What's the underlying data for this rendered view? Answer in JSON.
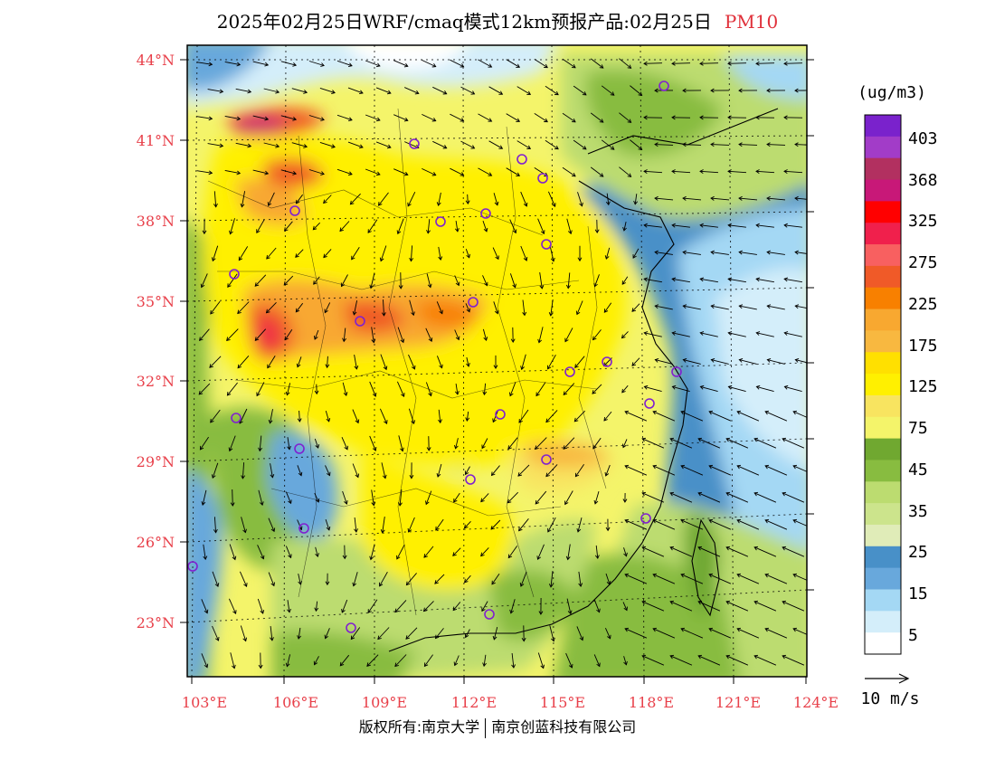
{
  "title": {
    "main": "2025年02月25日WRF/cmaq模式12km预报产品:02月25日",
    "pollutant": "PM10"
  },
  "map": {
    "lat_labels": [
      "44°N",
      "41°N",
      "38°N",
      "35°N",
      "32°N",
      "29°N",
      "26°N",
      "23°N"
    ],
    "lon_labels": [
      "103°E",
      "106°E",
      "109°E",
      "112°E",
      "115°E",
      "118°E",
      "121°E",
      "124°E"
    ]
  },
  "colorbar": {
    "unit": "(ug/m3)",
    "labels": [
      "403",
      "368",
      "325",
      "275",
      "225",
      "175",
      "125",
      "75",
      "45",
      "35",
      "25",
      "15",
      "5"
    ],
    "colors": [
      "#7a22cc",
      "#a23cc8",
      "#b23060",
      "#c81878",
      "#ff0000",
      "#f0204c",
      "#f86060",
      "#f05a28",
      "#f88000",
      "#f8a830",
      "#f8b840",
      "#ffe000",
      "#fff000",
      "#f8e460",
      "#f4f46a",
      "#70a830",
      "#88bc40",
      "#bcdc70",
      "#cce48c",
      "#e0ecb8",
      "#4890c8",
      "#68a8dc",
      "#a4d8f4",
      "#d4eefa",
      "#ffffff"
    ]
  },
  "wind_scale": {
    "label": "10 m/s"
  },
  "copyright": {
    "left": "版权所有:南京大学",
    "right": "南京创蓝科技有限公司"
  }
}
